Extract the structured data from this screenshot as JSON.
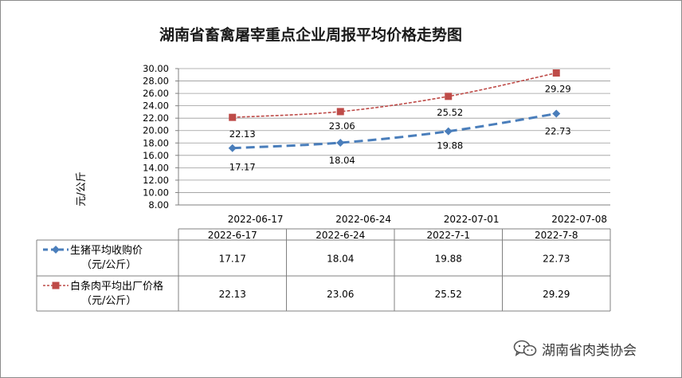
{
  "chart_data": {
    "type": "line",
    "title": "湖南省畜禽屠宰重点企业周报平均价格走势图",
    "ylabel": "元/公斤",
    "xlabel": "",
    "ylim": [
      8,
      30
    ],
    "ytick_step": 2,
    "ytick_labels": [
      "8.00",
      "10.00",
      "12.00",
      "14.00",
      "16.00",
      "18.00",
      "20.00",
      "22.00",
      "24.00",
      "26.00",
      "28.00",
      "30.00"
    ],
    "categories": [
      "2022-06-17",
      "2022-06-24",
      "2022-07-01",
      "2022-07-08"
    ],
    "table_headers": [
      "2022-6-17",
      "2022-6-24",
      "2022-7-1",
      "2022-7-8"
    ],
    "grid": true,
    "series": [
      {
        "name": "生猪平均收购价",
        "name_line2": "（元/公斤）",
        "values": [
          17.17,
          18.04,
          19.88,
          22.73
        ],
        "labels": [
          "17.17",
          "18.04",
          "19.88",
          "22.73"
        ],
        "color": "#4a7ebb",
        "marker": "diamond",
        "line_style": "dashed"
      },
      {
        "name": "白条肉平均出厂价格",
        "name_line2": "（元/公斤）",
        "values": [
          22.13,
          23.06,
          25.52,
          29.29
        ],
        "labels": [
          "22.13",
          "23.06",
          "25.52",
          "29.29"
        ],
        "color": "#be4b48",
        "marker": "square",
        "line_style": "dotted"
      }
    ]
  },
  "watermark": {
    "text": "湖南省肉类协会",
    "icon": "wechat-icon"
  }
}
